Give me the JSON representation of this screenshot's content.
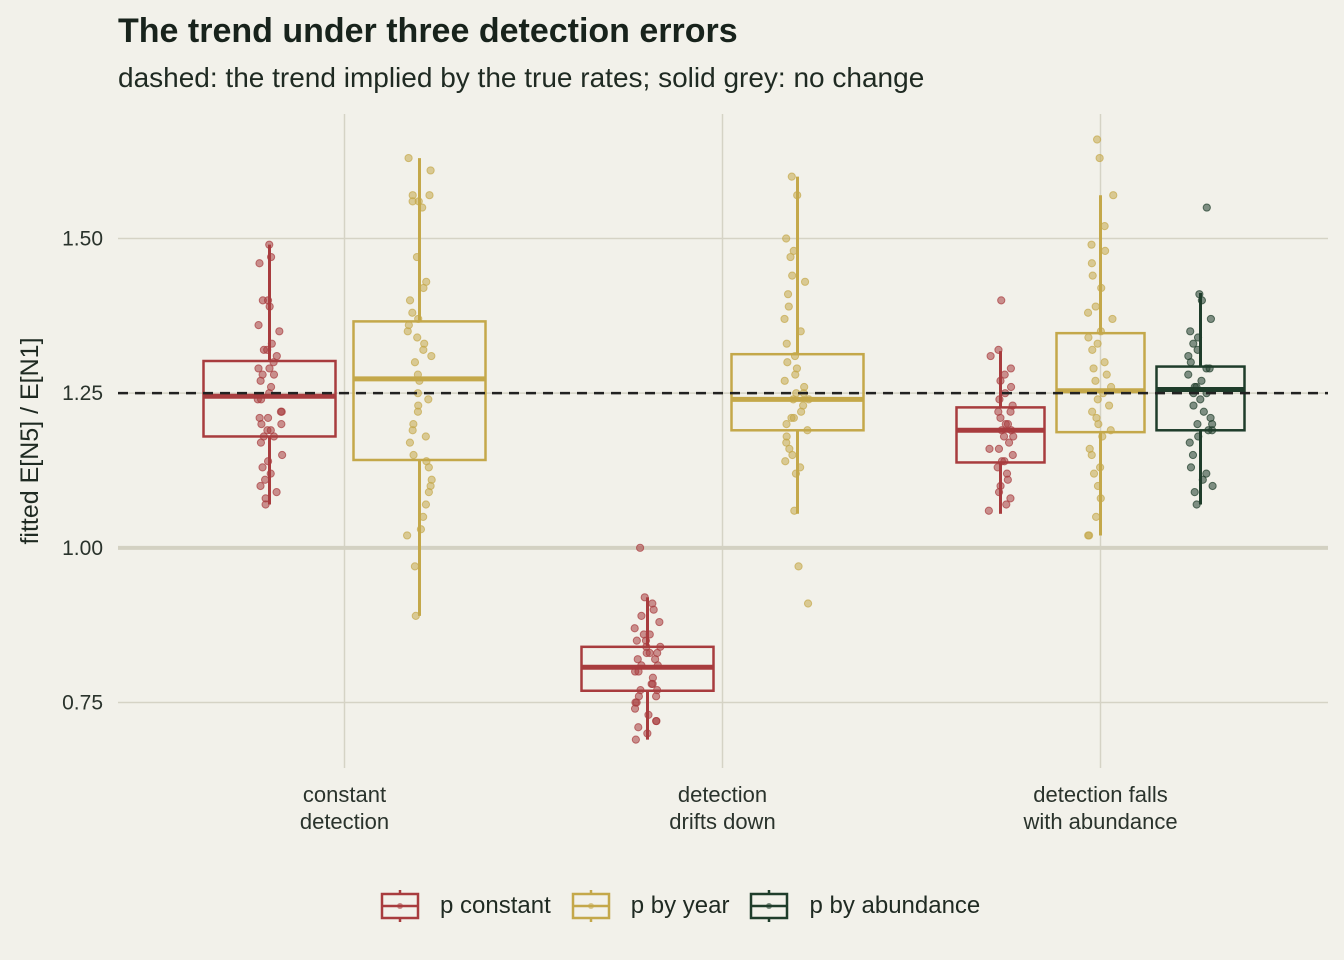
{
  "title": "The trend under three detection errors",
  "subtitle": "dashed: the trend implied by the true rates; solid grey: no change",
  "chart_data": {
    "type": "boxplot",
    "title": "The trend under three detection errors",
    "subtitle": "dashed: the trend implied by the true rates; solid grey: no change",
    "ylabel": "fitted E[N5] / E[N1]",
    "xlabel": "",
    "ylim": [
      0.66,
      1.7
    ],
    "yticks": [
      0.75,
      1.0,
      1.25,
      1.5
    ],
    "ytick_labels": [
      "0.75",
      "1.00",
      "1.25",
      "1.50"
    ],
    "reference_lines": [
      {
        "y": 1.25,
        "style": "dashed",
        "color": "#222222"
      },
      {
        "y": 1.0,
        "style": "solid",
        "color": "#d3d1c2"
      }
    ],
    "categories": [
      {
        "key": "constant",
        "lines": [
          "constant",
          "detection"
        ]
      },
      {
        "key": "drift",
        "lines": [
          "detection",
          "drifts down"
        ]
      },
      {
        "key": "abund",
        "lines": [
          "detection falls",
          "with abundance"
        ]
      }
    ],
    "series": [
      {
        "name": "p constant",
        "color": "#a83c3e"
      },
      {
        "name": "p by year",
        "color": "#c4a84a"
      },
      {
        "name": "p by abundance",
        "color": "#1f3d2b"
      }
    ],
    "boxes": [
      {
        "category": "constant",
        "series": 0,
        "whisker_low": 1.07,
        "q1": 1.18,
        "median": 1.245,
        "q3": 1.302,
        "whisker_high": 1.49,
        "points": [
          1.49,
          1.47,
          1.46,
          1.4,
          1.4,
          1.39,
          1.36,
          1.35,
          1.33,
          1.32,
          1.32,
          1.31,
          1.3,
          1.29,
          1.29,
          1.28,
          1.28,
          1.27,
          1.26,
          1.25,
          1.24,
          1.24,
          1.22,
          1.22,
          1.21,
          1.21,
          1.2,
          1.2,
          1.19,
          1.19,
          1.18,
          1.18,
          1.17,
          1.15,
          1.14,
          1.13,
          1.12,
          1.11,
          1.1,
          1.09,
          1.08,
          1.07
        ]
      },
      {
        "category": "constant",
        "series": 1,
        "whisker_low": 0.89,
        "q1": 1.142,
        "median": 1.273,
        "q3": 1.366,
        "whisker_high": 1.63,
        "points": [
          1.63,
          1.61,
          1.57,
          1.57,
          1.56,
          1.56,
          1.55,
          1.47,
          1.43,
          1.42,
          1.4,
          1.38,
          1.37,
          1.36,
          1.35,
          1.34,
          1.33,
          1.32,
          1.31,
          1.3,
          1.28,
          1.27,
          1.25,
          1.24,
          1.23,
          1.22,
          1.2,
          1.19,
          1.18,
          1.17,
          1.15,
          1.14,
          1.13,
          1.11,
          1.1,
          1.09,
          1.07,
          1.05,
          1.03,
          1.02,
          0.97,
          0.89
        ]
      },
      {
        "category": "drift",
        "series": 0,
        "whisker_low": 0.69,
        "q1": 0.769,
        "median": 0.807,
        "q3": 0.84,
        "whisker_high": 0.92,
        "points": [
          1.0,
          0.92,
          0.91,
          0.9,
          0.89,
          0.88,
          0.87,
          0.86,
          0.86,
          0.85,
          0.85,
          0.84,
          0.84,
          0.83,
          0.83,
          0.83,
          0.82,
          0.82,
          0.81,
          0.81,
          0.8,
          0.8,
          0.79,
          0.78,
          0.78,
          0.77,
          0.77,
          0.76,
          0.76,
          0.75,
          0.75,
          0.74,
          0.73,
          0.72,
          0.72,
          0.71,
          0.7,
          0.69
        ]
      },
      {
        "category": "drift",
        "series": 1,
        "whisker_low": 1.055,
        "q1": 1.19,
        "median": 1.24,
        "q3": 1.313,
        "whisker_high": 1.6,
        "points": [
          1.6,
          1.57,
          1.5,
          1.48,
          1.47,
          1.44,
          1.43,
          1.41,
          1.39,
          1.37,
          1.35,
          1.33,
          1.31,
          1.3,
          1.29,
          1.28,
          1.27,
          1.26,
          1.25,
          1.25,
          1.24,
          1.24,
          1.23,
          1.22,
          1.21,
          1.21,
          1.2,
          1.19,
          1.18,
          1.17,
          1.16,
          1.15,
          1.14,
          1.13,
          1.12,
          1.06,
          0.97,
          0.91
        ]
      },
      {
        "category": "abund",
        "series": 0,
        "whisker_low": 1.055,
        "q1": 1.138,
        "median": 1.19,
        "q3": 1.227,
        "whisker_high": 1.318,
        "points": [
          1.4,
          1.32,
          1.31,
          1.29,
          1.28,
          1.27,
          1.26,
          1.25,
          1.24,
          1.23,
          1.22,
          1.22,
          1.21,
          1.2,
          1.2,
          1.19,
          1.19,
          1.18,
          1.18,
          1.17,
          1.16,
          1.16,
          1.15,
          1.14,
          1.14,
          1.13,
          1.12,
          1.11,
          1.1,
          1.09,
          1.08,
          1.07,
          1.06
        ]
      },
      {
        "category": "abund",
        "series": 1,
        "whisker_low": 1.02,
        "q1": 1.187,
        "median": 1.254,
        "q3": 1.347,
        "whisker_high": 1.57,
        "points": [
          1.66,
          1.63,
          1.57,
          1.52,
          1.49,
          1.48,
          1.46,
          1.44,
          1.42,
          1.39,
          1.38,
          1.37,
          1.35,
          1.34,
          1.33,
          1.32,
          1.3,
          1.29,
          1.28,
          1.27,
          1.26,
          1.25,
          1.24,
          1.23,
          1.22,
          1.21,
          1.2,
          1.19,
          1.18,
          1.16,
          1.15,
          1.13,
          1.12,
          1.1,
          1.08,
          1.05,
          1.02,
          1.02
        ]
      },
      {
        "category": "abund",
        "series": 2,
        "whisker_low": 1.07,
        "q1": 1.19,
        "median": 1.256,
        "q3": 1.293,
        "whisker_high": 1.412,
        "points": [
          1.55,
          1.41,
          1.4,
          1.37,
          1.35,
          1.34,
          1.33,
          1.32,
          1.31,
          1.3,
          1.29,
          1.29,
          1.28,
          1.27,
          1.26,
          1.26,
          1.25,
          1.25,
          1.24,
          1.23,
          1.22,
          1.21,
          1.2,
          1.2,
          1.19,
          1.19,
          1.18,
          1.17,
          1.15,
          1.13,
          1.12,
          1.11,
          1.1,
          1.09,
          1.07
        ]
      }
    ],
    "legend_position": "bottom",
    "grid": true
  }
}
